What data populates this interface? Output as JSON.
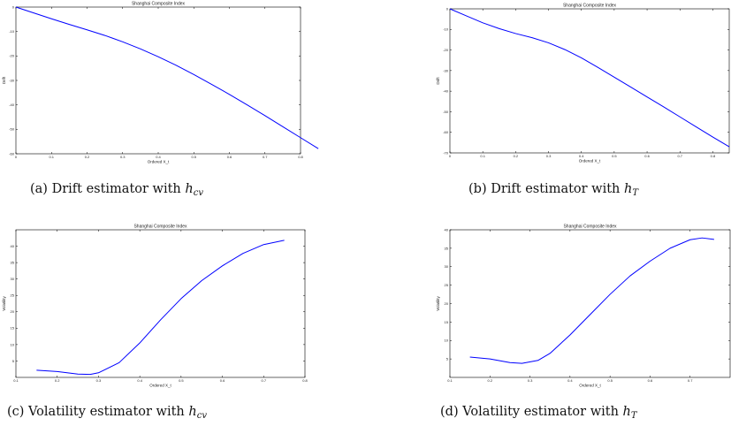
{
  "panels": [
    {
      "id": "a",
      "caption": {
        "prefix": "(a)  Drift estimator with ",
        "math_base": "h",
        "math_sub": "cv"
      }
    },
    {
      "id": "b",
      "caption": {
        "prefix": "(b)  Drift estimator with ",
        "math_base": "h",
        "math_sub": "T"
      }
    },
    {
      "id": "c",
      "caption": {
        "prefix": "(c)  Volatility estimator with ",
        "math_base": "h",
        "math_sub": "cv"
      }
    },
    {
      "id": "d",
      "caption": {
        "prefix": "(d)  Volatility estimator with ",
        "math_base": "h",
        "math_sub": "T"
      }
    }
  ],
  "chart_data": [
    {
      "type": "line",
      "title": "Shanghai Composite Index",
      "xlabel": "Ordered X_t",
      "ylabel": "Drift",
      "xlim": [
        0,
        0.8
      ],
      "ylim": [
        -60,
        0
      ],
      "xticks": [
        "0",
        "0.1",
        "0.2",
        "0.3",
        "0.4",
        "0.5",
        "0.6",
        "0.7",
        "0.8"
      ],
      "yticks": [
        "0",
        "-10",
        "-20",
        "-30",
        "-40",
        "-50",
        "-60"
      ],
      "line_color": "#0000ff",
      "x": [
        0.0,
        0.05,
        0.1,
        0.15,
        0.2,
        0.25,
        0.3,
        0.35,
        0.4,
        0.45,
        0.5,
        0.55,
        0.6,
        0.65,
        0.7,
        0.75,
        0.8,
        0.85
      ],
      "y": [
        0.0,
        -2.4,
        -4.8,
        -7.1,
        -9.3,
        -11.6,
        -14.2,
        -17.1,
        -20.3,
        -23.8,
        -27.6,
        -31.6,
        -35.7,
        -40.0,
        -44.4,
        -48.9,
        -53.4,
        -57.9
      ]
    },
    {
      "type": "line",
      "title": "Shanghai Composite Index",
      "xlabel": "Ordered X_t",
      "ylabel": "Drift",
      "xlim": [
        0,
        0.85
      ],
      "ylim": [
        -70,
        0
      ],
      "xticks": [
        "0",
        "0.1",
        "0.2",
        "0.3",
        "0.4",
        "0.5",
        "0.6",
        "0.7",
        "0.8"
      ],
      "yticks": [
        "0",
        "-10",
        "-20",
        "-30",
        "-40",
        "-50",
        "-60",
        "-70"
      ],
      "line_color": "#0000ff",
      "x": [
        0.0,
        0.05,
        0.1,
        0.15,
        0.2,
        0.25,
        0.3,
        0.35,
        0.4,
        0.45,
        0.5,
        0.55,
        0.6,
        0.65,
        0.7,
        0.75,
        0.8,
        0.85
      ],
      "y": [
        0.0,
        -3.4,
        -6.8,
        -9.6,
        -12.0,
        -14.0,
        -16.5,
        -19.8,
        -23.8,
        -28.4,
        -33.2,
        -38.0,
        -42.8,
        -47.6,
        -52.5,
        -57.4,
        -62.3,
        -67.0
      ]
    },
    {
      "type": "line",
      "title": "Shanghai Composite Index",
      "xlabel": "Ordered X_t",
      "ylabel": "Volatility",
      "xlim": [
        0.1,
        0.8
      ],
      "ylim": [
        0,
        45
      ],
      "xticks": [
        "0.1",
        "0.2",
        "0.3",
        "0.4",
        "0.5",
        "0.6",
        "0.7",
        "0.8"
      ],
      "yticks": [
        "5",
        "10",
        "15",
        "20",
        "25",
        "30",
        "35",
        "40"
      ],
      "line_color": "#0000ff",
      "x": [
        0.15,
        0.2,
        0.25,
        0.28,
        0.3,
        0.35,
        0.4,
        0.45,
        0.5,
        0.55,
        0.6,
        0.65,
        0.7,
        0.75
      ],
      "y": [
        2.2,
        1.8,
        1.0,
        0.9,
        1.4,
        4.5,
        10.5,
        17.5,
        24.0,
        29.5,
        34.0,
        37.8,
        40.5,
        41.8
      ]
    },
    {
      "type": "line",
      "title": "Shanghai Composite Index",
      "xlabel": "Ordered X_t",
      "ylabel": "Volatility",
      "xlim": [
        0.1,
        0.8
      ],
      "ylim": [
        0,
        40
      ],
      "xticks": [
        "0.1",
        "0.2",
        "0.3",
        "0.4",
        "0.5",
        "0.6",
        "0.7"
      ],
      "yticks": [
        "5",
        "10",
        "15",
        "20",
        "25",
        "30",
        "35",
        "40"
      ],
      "line_color": "#0000ff",
      "x": [
        0.15,
        0.2,
        0.25,
        0.28,
        0.32,
        0.35,
        0.4,
        0.45,
        0.5,
        0.55,
        0.6,
        0.65,
        0.7,
        0.73,
        0.76
      ],
      "y": [
        5.5,
        5.0,
        4.0,
        3.8,
        4.6,
        6.5,
        11.5,
        17.0,
        22.5,
        27.5,
        31.5,
        35.0,
        37.3,
        37.8,
        37.4
      ]
    }
  ]
}
